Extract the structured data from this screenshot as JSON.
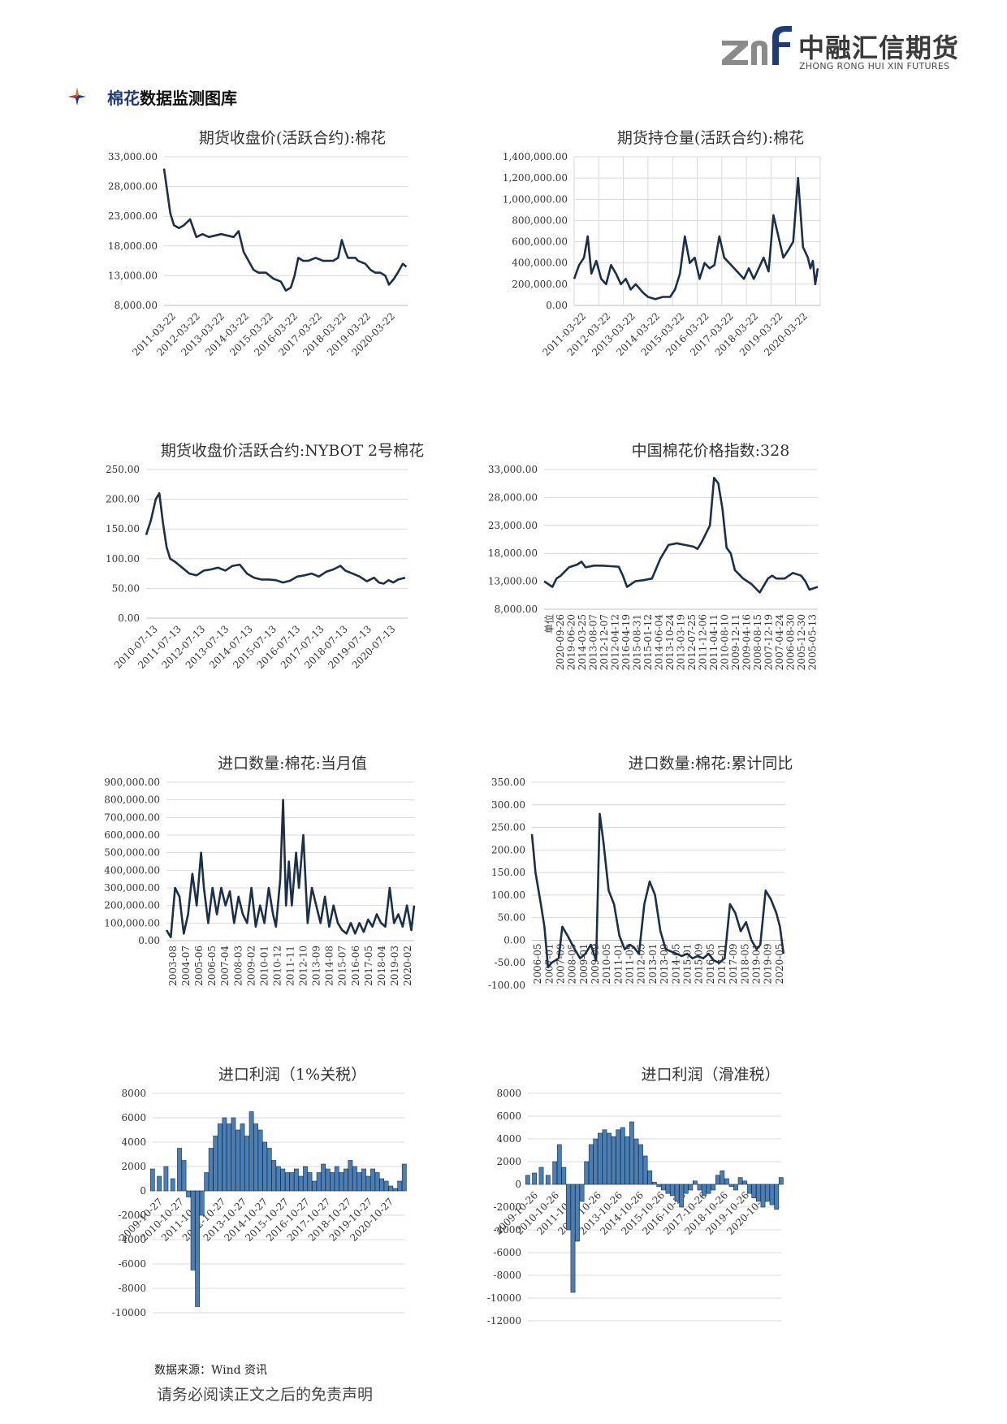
{
  "header": {
    "logo_cn": "中融汇信期货",
    "logo_en": "ZHONG RONG HUI XIN FUTURES"
  },
  "section": {
    "icon": "four-point-star-icon",
    "title_prefix": "棉花",
    "title_suffix": "数据监测图库"
  },
  "colors": {
    "line": "#1b3048",
    "bar": "#4a7fb5",
    "bar_edge": "#1b3048",
    "grid": "#d9d9d9",
    "axis": "#bfbfbf"
  },
  "footer": {
    "source": "数据来源：Wind 资讯",
    "disclaimer": "请务必阅读正文之后的免责声明"
  },
  "chart_data": [
    {
      "type": "line",
      "title": "期货收盘价(活跃合约):棉花",
      "y_ticks": [
        "33,000.00",
        "28,000.00",
        "23,000.00",
        "18,000.00",
        "13,000.00",
        "8,000.00"
      ],
      "ylim": [
        8000,
        33000
      ],
      "x_labels": [
        "2011-03-22",
        "2012-03-22",
        "2013-03-22",
        "2014-03-22",
        "2015-03-22",
        "2016-03-22",
        "2017-03-22",
        "2018-03-22",
        "2019-03-22",
        "2020-03-22"
      ],
      "xlim": [
        2011.2,
        2021.0
      ],
      "grid": "horizontal",
      "x": [
        2011.2,
        2011.3,
        2011.45,
        2011.6,
        2011.8,
        2012.0,
        2012.25,
        2012.5,
        2012.75,
        2013.0,
        2013.5,
        2014.0,
        2014.2,
        2014.4,
        2014.6,
        2014.8,
        2015.0,
        2015.3,
        2015.6,
        2015.9,
        2016.1,
        2016.3,
        2016.45,
        2016.6,
        2016.8,
        2017.0,
        2017.3,
        2017.6,
        2018.0,
        2018.2,
        2018.35,
        2018.5,
        2018.6,
        2018.9,
        2019.0,
        2019.3,
        2019.5,
        2019.7,
        2019.9,
        2020.1,
        2020.25,
        2020.45,
        2020.6,
        2020.8,
        2020.95
      ],
      "y": [
        31000,
        28000,
        23500,
        21500,
        21000,
        21500,
        22500,
        19500,
        20000,
        19500,
        20000,
        19500,
        20500,
        17000,
        15500,
        14000,
        13500,
        13500,
        12500,
        12000,
        10500,
        11000,
        13000,
        16000,
        15500,
        15500,
        16000,
        15500,
        15500,
        16000,
        19000,
        17000,
        16000,
        16000,
        15500,
        15000,
        14000,
        13500,
        13500,
        13000,
        11500,
        12500,
        13500,
        15000,
        14500
      ]
    },
    {
      "type": "line",
      "title": "期货持仓量(活跃合约):棉花",
      "y_ticks": [
        "1,400,000.00",
        "1,200,000.00",
        "1,000,000.00",
        "800,000.00",
        "600,000.00",
        "400,000.00",
        "200,000.00",
        "0.00"
      ],
      "ylim": [
        0,
        1400000
      ],
      "x_labels": [
        "2011-03-22",
        "2012-03-22",
        "2013-03-22",
        "2014-03-22",
        "2015-03-22",
        "2016-03-22",
        "2017-03-22",
        "2018-03-22",
        "2019-03-22",
        "2020-03-22"
      ],
      "xlim": [
        2011.0,
        2021.0
      ],
      "grid": "both",
      "x": [
        2011.0,
        2011.2,
        2011.4,
        2011.55,
        2011.7,
        2011.9,
        2012.1,
        2012.3,
        2012.5,
        2012.7,
        2012.9,
        2013.1,
        2013.3,
        2013.5,
        2013.8,
        2014.0,
        2014.3,
        2014.6,
        2014.9,
        2015.1,
        2015.3,
        2015.5,
        2015.7,
        2015.9,
        2016.1,
        2016.3,
        2016.5,
        2016.7,
        2016.9,
        2017.1,
        2017.3,
        2017.5,
        2017.7,
        2017.9,
        2018.1,
        2018.3,
        2018.5,
        2018.7,
        2018.9,
        2019.1,
        2019.3,
        2019.5,
        2019.7,
        2019.9,
        2020.1,
        2020.3,
        2020.5,
        2020.6,
        2020.7,
        2020.8,
        2020.9
      ],
      "y": [
        250000,
        380000,
        450000,
        650000,
        300000,
        420000,
        250000,
        200000,
        380000,
        300000,
        200000,
        250000,
        150000,
        200000,
        120000,
        80000,
        60000,
        80000,
        80000,
        150000,
        300000,
        650000,
        400000,
        450000,
        250000,
        400000,
        350000,
        380000,
        650000,
        450000,
        400000,
        350000,
        300000,
        250000,
        350000,
        250000,
        350000,
        450000,
        320000,
        850000,
        650000,
        450000,
        520000,
        600000,
        1200000,
        550000,
        450000,
        350000,
        420000,
        200000,
        350000
      ]
    },
    {
      "type": "line",
      "title": "期货收盘价活跃合约:NYBOT 2号棉花",
      "y_ticks": [
        "250.00",
        "200.00",
        "150.00",
        "100.00",
        "50.00",
        "0.00"
      ],
      "ylim": [
        0,
        250
      ],
      "x_labels": [
        "2010-07-13",
        "2011-07-13",
        "2012-07-13",
        "2013-07-13",
        "2014-07-13",
        "2015-07-13",
        "2016-07-13",
        "2017-07-13",
        "2018-07-13",
        "2019-07-13",
        "2020-07-13"
      ],
      "xlim": [
        2010.5,
        2021.4
      ],
      "grid": "horizontal",
      "x": [
        2010.5,
        2010.7,
        2010.9,
        2011.05,
        2011.2,
        2011.35,
        2011.5,
        2011.7,
        2012.0,
        2012.3,
        2012.6,
        2012.9,
        2013.2,
        2013.5,
        2013.8,
        2014.1,
        2014.4,
        2014.7,
        2015.0,
        2015.3,
        2015.6,
        2015.9,
        2016.2,
        2016.5,
        2016.8,
        2017.1,
        2017.4,
        2017.7,
        2018.0,
        2018.3,
        2018.6,
        2018.8,
        2019.1,
        2019.4,
        2019.7,
        2020.0,
        2020.2,
        2020.4,
        2020.6,
        2020.8,
        2021.0,
        2021.3
      ],
      "y": [
        140,
        165,
        200,
        210,
        160,
        120,
        100,
        95,
        85,
        75,
        72,
        80,
        82,
        85,
        80,
        88,
        90,
        75,
        68,
        65,
        65,
        64,
        60,
        63,
        70,
        72,
        75,
        70,
        78,
        82,
        88,
        80,
        75,
        70,
        62,
        68,
        60,
        58,
        64,
        60,
        65,
        68
      ]
    },
    {
      "type": "line",
      "title": "中国棉花价格指数:328",
      "y_ticks": [
        "33,000.00",
        "28,000.00",
        "23,000.00",
        "18,000.00",
        "13,000.00",
        "8,000.00"
      ],
      "ylim": [
        8000,
        33000
      ],
      "x_labels": [
        "单位",
        "2020-09-26",
        "2019-06-20",
        "2014-03-25",
        "2013-08-07",
        "2012-12-07",
        "2012-04-12",
        "2016-04-19",
        "2015-08-31",
        "2015-01-12",
        "2014-06-04",
        "2013-10-24",
        "2013-03-19",
        "2012-07-25",
        "2011-12-06",
        "2011-04-11",
        "2010-08-10",
        "2009-12-11",
        "2009-04-16",
        "2008-08-15",
        "2007-12-19",
        "2007-04-24",
        "2006-08-30",
        "2005-12-30",
        "2005-05-13"
      ],
      "xlim": [
        0,
        33
      ],
      "grid": "horizontal",
      "x": [
        0,
        1,
        1.5,
        2,
        3,
        4,
        4.5,
        5,
        6,
        7,
        8,
        9,
        9.5,
        10,
        11,
        12,
        13,
        14,
        15,
        16,
        17,
        18,
        18.5,
        19,
        20,
        20.5,
        21,
        21.5,
        22,
        22.5,
        23,
        24,
        25,
        26,
        27,
        27.5,
        28,
        29,
        30,
        31,
        31.5,
        32,
        33
      ],
      "y": [
        13000,
        12000,
        13500,
        14000,
        15500,
        16000,
        16500,
        15500,
        15800,
        15800,
        15700,
        15600,
        14000,
        12000,
        13000,
        13200,
        13500,
        17000,
        19500,
        19800,
        19500,
        19200,
        18800,
        20000,
        23000,
        31500,
        30500,
        26000,
        19000,
        18000,
        15000,
        13500,
        12500,
        11000,
        13500,
        14000,
        13500,
        13500,
        14500,
        14000,
        13000,
        11500,
        12000
      ]
    },
    {
      "type": "line",
      "title": "进口数量:棉花:当月值",
      "y_ticks": [
        "900,000.00",
        "800,000.00",
        "700,000.00",
        "600,000.00",
        "500,000.00",
        "400,000.00",
        "300,000.00",
        "200,000.00",
        "100,000.00",
        "0.00"
      ],
      "ylim": [
        0,
        900000
      ],
      "x_labels": [
        "2003-08",
        "2004-07",
        "2005-06",
        "2006-05",
        "2007-04",
        "2008-03",
        "2009-02",
        "2010-01",
        "2010-12",
        "2011-11",
        "2012-10",
        "2013-09",
        "2014-08",
        "2015-07",
        "2016-06",
        "2017-05",
        "2018-04",
        "2019-03",
        "2020-02"
      ],
      "xlim": [
        2003.5,
        2020.7
      ],
      "grid": "horizontal",
      "x": [
        2003.5,
        2003.8,
        2004.1,
        2004.4,
        2004.7,
        2005.0,
        2005.3,
        2005.6,
        2005.9,
        2006.1,
        2006.4,
        2006.7,
        2007.0,
        2007.3,
        2007.6,
        2007.9,
        2008.2,
        2008.5,
        2008.8,
        2009.1,
        2009.4,
        2009.7,
        2010.0,
        2010.3,
        2010.6,
        2010.9,
        2011.1,
        2011.4,
        2011.6,
        2011.8,
        2012.0,
        2012.2,
        2012.5,
        2012.7,
        2013.0,
        2013.3,
        2013.6,
        2013.9,
        2014.2,
        2014.5,
        2014.8,
        2015.1,
        2015.4,
        2015.7,
        2016.0,
        2016.3,
        2016.6,
        2016.9,
        2017.2,
        2017.5,
        2017.8,
        2018.1,
        2018.4,
        2018.7,
        2019.0,
        2019.3,
        2019.6,
        2019.9,
        2020.2,
        2020.5,
        2020.7
      ],
      "y": [
        60000,
        20000,
        300000,
        250000,
        40000,
        150000,
        380000,
        200000,
        500000,
        300000,
        100000,
        300000,
        150000,
        300000,
        200000,
        280000,
        100000,
        250000,
        150000,
        100000,
        300000,
        80000,
        200000,
        100000,
        300000,
        150000,
        80000,
        350000,
        800000,
        200000,
        450000,
        200000,
        500000,
        300000,
        600000,
        100000,
        300000,
        200000,
        100000,
        250000,
        80000,
        200000,
        100000,
        60000,
        40000,
        100000,
        40000,
        100000,
        50000,
        120000,
        80000,
        150000,
        100000,
        80000,
        300000,
        100000,
        150000,
        80000,
        200000,
        60000,
        200000
      ]
    },
    {
      "type": "line",
      "title": "进口数量:棉花:累计同比",
      "y_ticks": [
        "350.00",
        "300.00",
        "250.00",
        "200.00",
        "150.00",
        "100.00",
        "50.00",
        "0.00",
        "-50.00",
        "-100.00"
      ],
      "ylim": [
        -100,
        350
      ],
      "x_labels": [
        "2006-05",
        "2007-01",
        "2007-09",
        "2008-05",
        "2009-01",
        "2009-09",
        "2010-05",
        "2011-01",
        "2011-09",
        "2012-05",
        "2013-01",
        "2013-09",
        "2014-05",
        "2015-01",
        "2015-09",
        "2016-05",
        "2017-01",
        "2017-09",
        "2018-05",
        "2019-01",
        "2019-09",
        "2020-05"
      ],
      "xlim": [
        2006.3,
        2020.5
      ],
      "grid": "horizontal",
      "x": [
        2006.3,
        2006.5,
        2006.8,
        2007.0,
        2007.2,
        2007.4,
        2007.8,
        2008.0,
        2008.3,
        2008.7,
        2009.0,
        2009.3,
        2009.6,
        2009.9,
        2010.1,
        2010.3,
        2010.6,
        2010.9,
        2011.2,
        2011.5,
        2011.8,
        2012.0,
        2012.3,
        2012.6,
        2012.9,
        2013.2,
        2013.5,
        2013.8,
        2014.1,
        2014.4,
        2014.7,
        2015.0,
        2015.3,
        2015.6,
        2015.9,
        2016.2,
        2016.5,
        2016.8,
        2017.1,
        2017.4,
        2017.7,
        2018.0,
        2018.3,
        2018.6,
        2018.9,
        2019.1,
        2019.4,
        2019.7,
        2020.0,
        2020.2,
        2020.4
      ],
      "y": [
        235,
        150,
        80,
        30,
        -60,
        -50,
        -40,
        30,
        10,
        -20,
        -40,
        -30,
        -10,
        -45,
        280,
        220,
        110,
        80,
        10,
        -20,
        -10,
        -15,
        -30,
        80,
        130,
        100,
        20,
        -20,
        -25,
        -30,
        -35,
        -30,
        -40,
        -35,
        -40,
        -30,
        -45,
        -50,
        -40,
        80,
        60,
        20,
        40,
        0,
        -20,
        -10,
        110,
        90,
        60,
        30,
        -30
      ]
    },
    {
      "type": "bar",
      "title": "进口利润（1%关税）",
      "y_ticks": [
        "8000",
        "6000",
        "4000",
        "2000",
        "0",
        "-2000",
        "-4000",
        "-6000",
        "-8000",
        "-10000"
      ],
      "ylim": [
        -10000,
        8000
      ],
      "x_labels": [
        "2009-10-27",
        "2010-10-27",
        "2011-10-27",
        "2012-10-27",
        "2013-10-27",
        "2014-10-27",
        "2015-10-27",
        "2016-10-27",
        "2017-10-27",
        "2018-10-27",
        "2019-10-27",
        "2020-10-27"
      ],
      "xlim": [
        2009.5,
        2020.7
      ],
      "grid": "horizontal",
      "x": [
        2009.5,
        2009.8,
        2010.1,
        2010.4,
        2010.7,
        2010.9,
        2011.1,
        2011.3,
        2011.5,
        2011.7,
        2011.9,
        2012.1,
        2012.3,
        2012.5,
        2012.7,
        2012.9,
        2013.1,
        2013.3,
        2013.5,
        2013.7,
        2013.9,
        2014.1,
        2014.3,
        2014.5,
        2014.7,
        2014.9,
        2015.1,
        2015.3,
        2015.5,
        2015.7,
        2015.9,
        2016.1,
        2016.3,
        2016.5,
        2016.7,
        2016.9,
        2017.1,
        2017.3,
        2017.5,
        2017.7,
        2017.9,
        2018.1,
        2018.3,
        2018.5,
        2018.7,
        2018.9,
        2019.1,
        2019.3,
        2019.5,
        2019.7,
        2019.9,
        2020.1,
        2020.3,
        2020.5,
        2020.7
      ],
      "y": [
        1800,
        1200,
        2000,
        1000,
        3500,
        2500,
        -500,
        -6500,
        -9500,
        -2000,
        1500,
        3500,
        4500,
        5500,
        6000,
        5500,
        6000,
        5000,
        5500,
        4500,
        6500,
        5500,
        5000,
        4000,
        3500,
        2500,
        2000,
        1800,
        1500,
        1500,
        1800,
        1200,
        2000,
        1500,
        800,
        1500,
        2200,
        1800,
        1500,
        2000,
        1500,
        1800,
        2500,
        2000,
        1500,
        1800,
        1200,
        1800,
        1500,
        1000,
        800,
        400,
        200,
        800,
        2200
      ]
    },
    {
      "type": "bar",
      "title": "进口利润（滑准税）",
      "y_ticks": [
        "8000",
        "6000",
        "4000",
        "2000",
        "0",
        "-2000",
        "-4000",
        "-6000",
        "-8000",
        "-10000",
        "-12000"
      ],
      "ylim": [
        -12000,
        8000
      ],
      "x_labels": [
        "2009-10-26",
        "2010-10-26",
        "2011-10-26",
        "2012-10-26",
        "2013-10-26",
        "2014-10-26",
        "2015-10-26",
        "2016-10-26",
        "2017-10-26",
        "2018-10-26",
        "2019-10-26",
        "2020-10-26"
      ],
      "xlim": [
        2009.5,
        2020.7
      ],
      "grid": "horizontal",
      "x": [
        2009.5,
        2009.8,
        2010.1,
        2010.4,
        2010.7,
        2010.9,
        2011.1,
        2011.3,
        2011.5,
        2011.7,
        2011.9,
        2012.1,
        2012.3,
        2012.5,
        2012.7,
        2012.9,
        2013.1,
        2013.3,
        2013.5,
        2013.7,
        2013.9,
        2014.1,
        2014.3,
        2014.5,
        2014.7,
        2014.9,
        2015.1,
        2015.3,
        2015.5,
        2015.7,
        2015.9,
        2016.1,
        2016.3,
        2016.5,
        2016.7,
        2016.9,
        2017.1,
        2017.3,
        2017.5,
        2017.7,
        2017.9,
        2018.1,
        2018.3,
        2018.5,
        2018.7,
        2018.9,
        2019.1,
        2019.3,
        2019.5,
        2019.7,
        2019.9,
        2020.1,
        2020.3,
        2020.5,
        2020.7
      ],
      "y": [
        800,
        1000,
        1500,
        800,
        2000,
        3500,
        1500,
        -4000,
        -9500,
        -5000,
        -1500,
        2000,
        3500,
        4000,
        4500,
        4800,
        4500,
        4200,
        4800,
        5000,
        4200,
        5500,
        4000,
        3500,
        2500,
        1200,
        200,
        -200,
        -500,
        -800,
        -1000,
        -1500,
        -2000,
        -800,
        -500,
        300,
        -500,
        -1000,
        -800,
        -500,
        800,
        1200,
        500,
        -200,
        -500,
        600,
        300,
        -800,
        -1200,
        -1500,
        -2000,
        -1500,
        -1800,
        -2200,
        600
      ]
    }
  ]
}
